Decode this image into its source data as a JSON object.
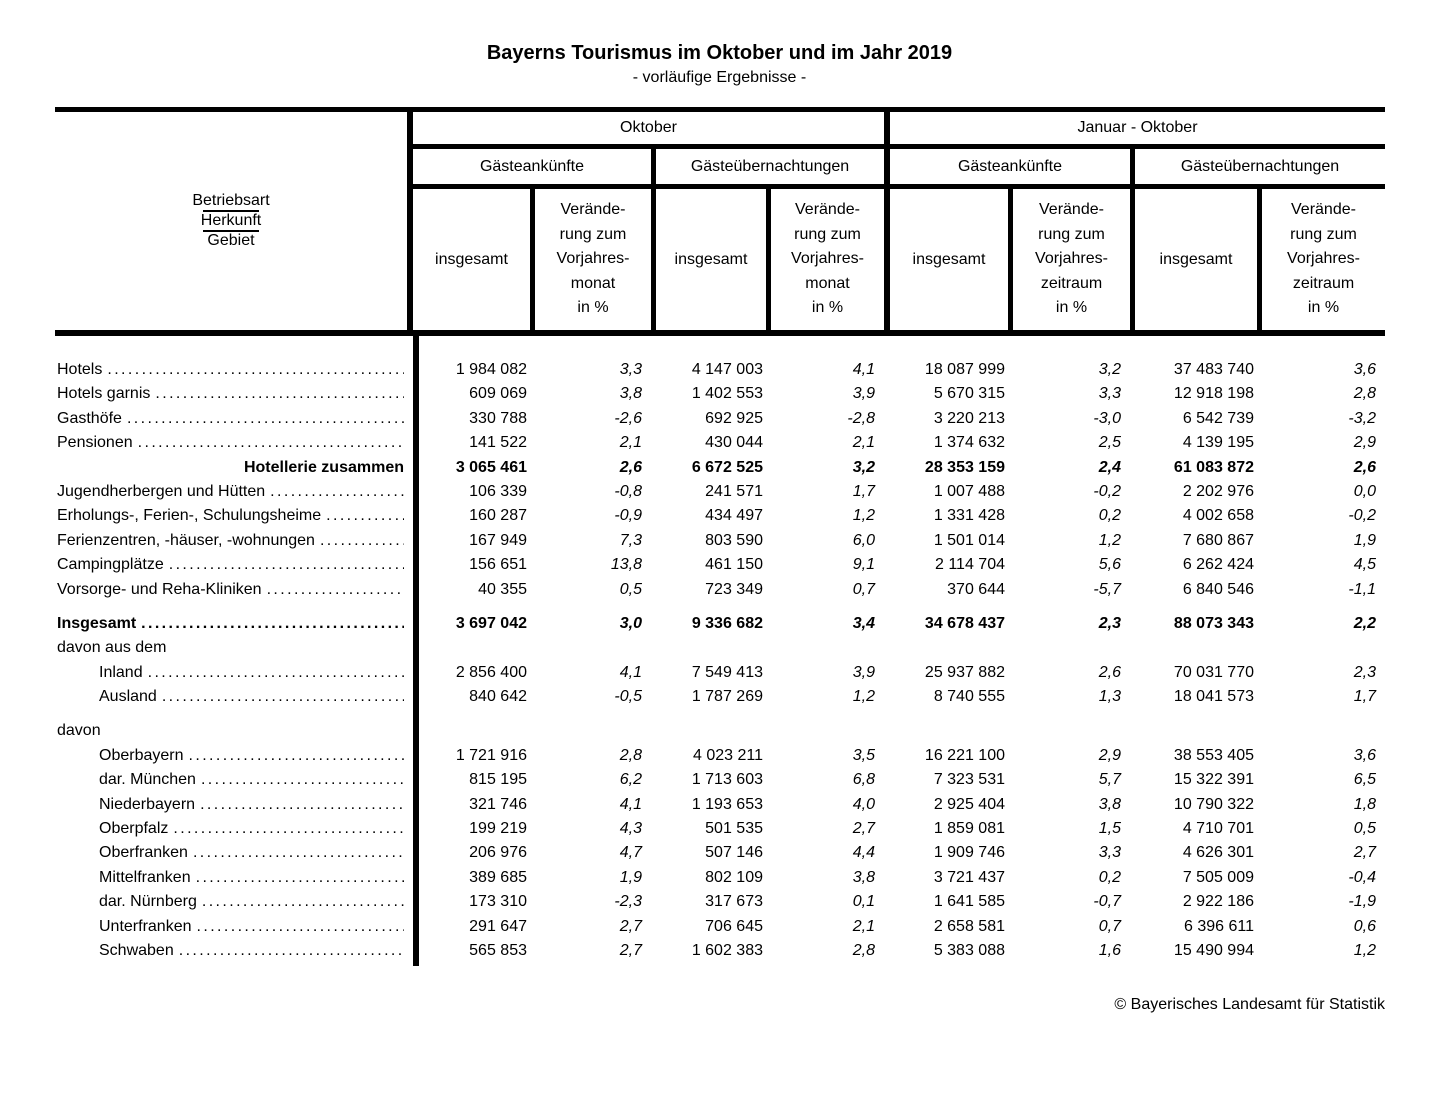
{
  "title": "Bayerns Tourismus im Oktober und im Jahr 2019",
  "subtitle": "- vorläufige Ergebnisse -",
  "footer": "© Bayerisches Landesamt für Statistik",
  "table": {
    "stub": [
      "Betriebsart",
      "Herkunft",
      "Gebiet"
    ],
    "periods": [
      {
        "label": "Oktober",
        "arrivals": "Gästeankünfte",
        "nights": "Gästeübernachtungen",
        "total": "insgesamt",
        "change": "Verände-\nrung zum\nVorjahres-\nmonat\nin %"
      },
      {
        "label": "Januar - Oktober",
        "arrivals": "Gästeankünfte",
        "nights": "Gästeübernachtungen",
        "total": "insgesamt",
        "change": "Verände-\nrung zum\nVorjahres-\nzeitraum\nin %"
      }
    ],
    "rows": [
      {
        "label": "Hotels",
        "leader": true,
        "values": [
          "1 984 082",
          "3,3",
          "4 147 003",
          "4,1",
          "18 087 999",
          "3,2",
          "37 483 740",
          "3,6"
        ]
      },
      {
        "label": "Hotels garnis",
        "leader": true,
        "values": [
          "609 069",
          "3,8",
          "1 402 553",
          "3,9",
          "5 670 315",
          "3,3",
          "12 918 198",
          "2,8"
        ]
      },
      {
        "label": "Gasthöfe",
        "leader": true,
        "values": [
          "330 788",
          "-2,6",
          "692 925",
          "-2,8",
          "3 220 213",
          "-3,0",
          "6 542 739",
          "-3,2"
        ]
      },
      {
        "label": "Pensionen",
        "leader": true,
        "values": [
          "141 522",
          "2,1",
          "430 044",
          "2,1",
          "1 374 632",
          "2,5",
          "4 139 195",
          "2,9"
        ]
      },
      {
        "label": "Hotellerie zusammen",
        "bold": true,
        "align": "right",
        "values": [
          "3 065 461",
          "2,6",
          "6 672 525",
          "3,2",
          "28 353 159",
          "2,4",
          "61 083 872",
          "2,6"
        ]
      },
      {
        "label": "Jugendherbergen und Hütten",
        "leader": true,
        "values": [
          "106 339",
          "-0,8",
          "241 571",
          "1,7",
          "1 007 488",
          "-0,2",
          "2 202 976",
          "0,0"
        ]
      },
      {
        "label": "Erholungs-, Ferien-, Schulungsheime",
        "leader": true,
        "values": [
          "160 287",
          "-0,9",
          "434 497",
          "1,2",
          "1 331 428",
          "0,2",
          "4 002 658",
          "-0,2"
        ]
      },
      {
        "label": "Ferienzentren, -häuser, -wohnungen",
        "leader": true,
        "values": [
          "167 949",
          "7,3",
          "803 590",
          "6,0",
          "1 501 014",
          "1,2",
          "7 680 867",
          "1,9"
        ]
      },
      {
        "label": "Campingplätze",
        "leader": true,
        "values": [
          "156 651",
          "13,8",
          "461 150",
          "9,1",
          "2 114 704",
          "5,6",
          "6 262 424",
          "4,5"
        ]
      },
      {
        "label": "Vorsorge- und Reha-Kliniken",
        "leader": true,
        "values": [
          "40 355",
          "0,5",
          "723 349",
          "0,7",
          "370 644",
          "-5,7",
          "6 840 546",
          "-1,1"
        ]
      },
      {
        "spacer": true
      },
      {
        "label": "Insgesamt",
        "bold": true,
        "leader": true,
        "values": [
          "3 697 042",
          "3,0",
          "9 336 682",
          "3,4",
          "34 678 437",
          "2,3",
          "88 073 343",
          "2,2"
        ]
      },
      {
        "label": "davon aus dem"
      },
      {
        "label": "Inland",
        "indent": 1,
        "leader": true,
        "values": [
          "2 856 400",
          "4,1",
          "7 549 413",
          "3,9",
          "25 937 882",
          "2,6",
          "70 031 770",
          "2,3"
        ]
      },
      {
        "label": "Ausland",
        "indent": 1,
        "leader": true,
        "values": [
          "840 642",
          "-0,5",
          "1 787 269",
          "1,2",
          "8 740 555",
          "1,3",
          "18 041 573",
          "1,7"
        ]
      },
      {
        "spacer": true
      },
      {
        "label": "davon"
      },
      {
        "label": "Oberbayern",
        "indent": 1,
        "leader": true,
        "values": [
          "1 721 916",
          "2,8",
          "4 023 211",
          "3,5",
          "16 221 100",
          "2,9",
          "38 553 405",
          "3,6"
        ]
      },
      {
        "label": "dar. München",
        "indent": 1,
        "leader": true,
        "values": [
          "815 195",
          "6,2",
          "1 713 603",
          "6,8",
          "7 323 531",
          "5,7",
          "15 322 391",
          "6,5"
        ]
      },
      {
        "label": "Niederbayern",
        "indent": 1,
        "leader": true,
        "values": [
          "321 746",
          "4,1",
          "1 193 653",
          "4,0",
          "2 925 404",
          "3,8",
          "10 790 322",
          "1,8"
        ]
      },
      {
        "label": "Oberpfalz",
        "indent": 1,
        "leader": true,
        "values": [
          "199 219",
          "4,3",
          "501 535",
          "2,7",
          "1 859 081",
          "1,5",
          "4 710 701",
          "0,5"
        ]
      },
      {
        "label": "Oberfranken",
        "indent": 1,
        "leader": true,
        "values": [
          "206 976",
          "4,7",
          "507 146",
          "4,4",
          "1 909 746",
          "3,3",
          "4 626 301",
          "2,7"
        ]
      },
      {
        "label": "Mittelfranken",
        "indent": 1,
        "leader": true,
        "values": [
          "389 685",
          "1,9",
          "802 109",
          "3,8",
          "3 721 437",
          "0,2",
          "7 505 009",
          "-0,4"
        ]
      },
      {
        "label": "dar. Nürnberg",
        "indent": 1,
        "leader": true,
        "values": [
          "173 310",
          "-2,3",
          "317 673",
          "0,1",
          "1 641 585",
          "-0,7",
          "2 922 186",
          "-1,9"
        ]
      },
      {
        "label": "Unterfranken",
        "indent": 1,
        "leader": true,
        "values": [
          "291 647",
          "2,7",
          "706 645",
          "2,1",
          "2 658 581",
          "0,7",
          "6 396 611",
          "0,6"
        ]
      },
      {
        "label": "Schwaben",
        "indent": 1,
        "leader": true,
        "values": [
          "565 853",
          "2,7",
          "1 602 383",
          "2,8",
          "5 383 088",
          "1,6",
          "15 490 994",
          "1,2"
        ]
      }
    ]
  }
}
